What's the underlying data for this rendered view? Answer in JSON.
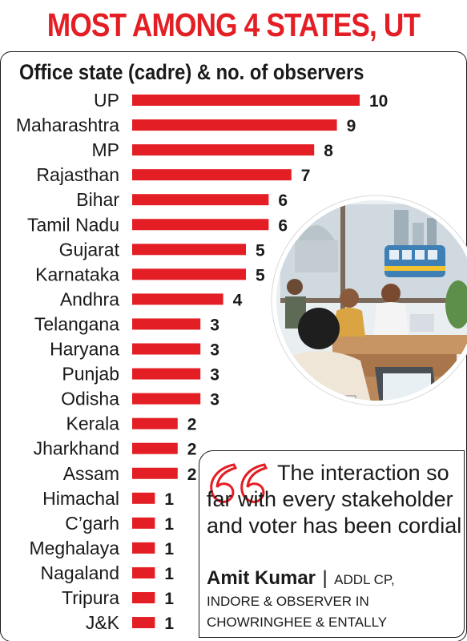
{
  "headline": "MOST AMONG 4 STATES, UT",
  "chart_data": {
    "type": "bar",
    "orientation": "horizontal",
    "title": "Office state (cadre) & no. of observers",
    "categories": [
      "UP",
      "Maharashtra",
      "MP",
      "Rajasthan",
      "Bihar",
      "Tamil Nadu",
      "Gujarat",
      "Karnataka",
      "Andhra",
      "Telangana",
      "Haryana",
      "Punjab",
      "Odisha",
      "Kerala",
      "Jharkhand",
      "Assam",
      "Himachal",
      "C’garh",
      "Meghalaya",
      "Nagaland",
      "Tripura",
      "J&K"
    ],
    "values": [
      10,
      9,
      8,
      7,
      6,
      6,
      5,
      5,
      4,
      3,
      3,
      3,
      3,
      2,
      2,
      2,
      1,
      1,
      1,
      1,
      1,
      1
    ],
    "bar_color": "#e31e24",
    "data_labels": true,
    "xlim": [
      0,
      10
    ]
  },
  "quote": {
    "text": "The interaction so far with every stakeholder and voter has been cordial",
    "author": "Amit Kumar",
    "separator": "|",
    "role_line1": "ADDL CP,",
    "role_line2": "INDORE & OBSERVER IN CHOWRINGHEE & ENTALLY"
  },
  "illustration": {
    "icon": "office-observers-illustration"
  },
  "colors": {
    "accent": "#e31e24",
    "text": "#1a1a1a"
  }
}
